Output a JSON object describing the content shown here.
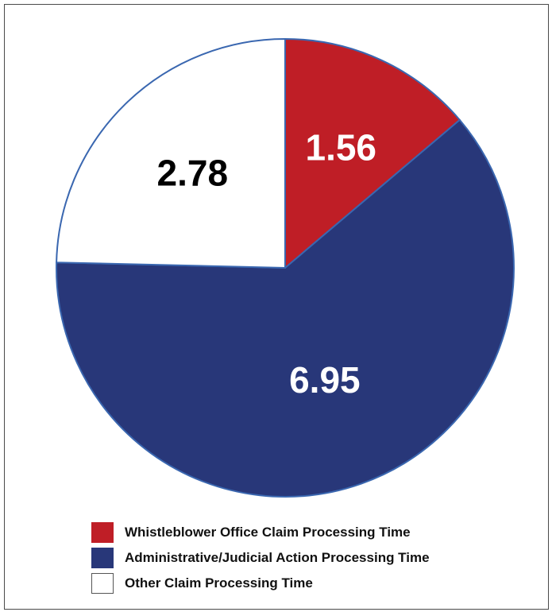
{
  "chart_data": {
    "type": "pie",
    "title": "",
    "slices": [
      {
        "label": "Whistleblower Office Claim Processing Time",
        "value": 1.56,
        "display": "1.56",
        "color": "#bf1e26",
        "text_color": "#ffffff"
      },
      {
        "label": "Administrative/Judicial Action Processing Time",
        "value": 6.95,
        "display": "6.95",
        "color": "#283779",
        "text_color": "#ffffff"
      },
      {
        "label": "Other Claim Processing Time",
        "value": 2.78,
        "display": "2.78",
        "color": "#ffffff",
        "text_color": "#000000"
      }
    ],
    "start_angle": "12 o'clock",
    "direction": "clockwise",
    "outline_color": "#3a67b0",
    "legend_position": "bottom"
  }
}
